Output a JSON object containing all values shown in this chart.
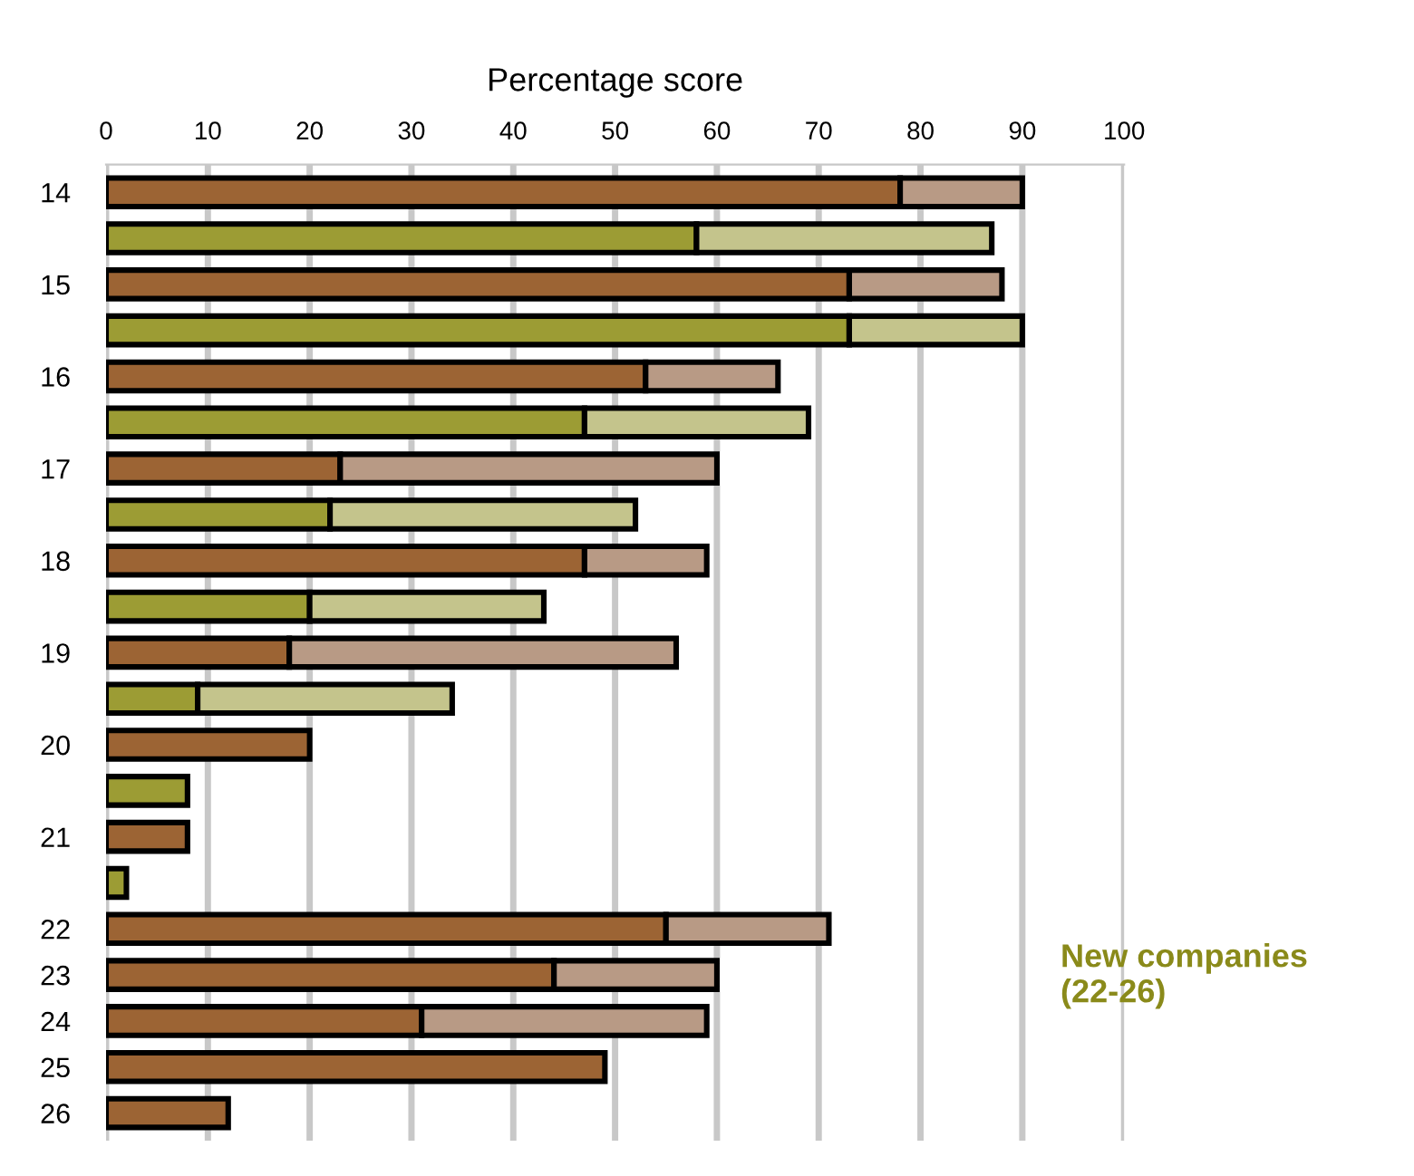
{
  "chart_data": {
    "type": "bar",
    "orientation": "horizontal",
    "stacked": true,
    "xlabel": "Percentage score",
    "categories": [
      "14",
      null,
      "15",
      null,
      "16",
      null,
      "17",
      null,
      "18",
      null,
      "19",
      null,
      "20",
      null,
      "21",
      null,
      "22",
      "23",
      "24",
      "25",
      "26"
    ],
    "series": [
      {
        "colors": [
          "#9c6434",
          "#9c9c34",
          "#9c6434",
          "#9c9c34",
          "#9c6434",
          "#9c9c34",
          "#9c6434",
          "#9c9c34",
          "#9c6434",
          "#9c9c34",
          "#9c6434",
          "#9c9c34",
          "#9c6434",
          "#9c9c34",
          "#9c6434",
          "#9c9c34",
          "#9c6434",
          "#9c6434",
          "#9c6434",
          "#9c6434",
          "#9c6434"
        ],
        "values": [
          78,
          58,
          73,
          73,
          53,
          47,
          23,
          22,
          47,
          20,
          18,
          9,
          20,
          8,
          8,
          2,
          55,
          44,
          31,
          49,
          12
        ]
      },
      {
        "colors": [
          "#b89a85",
          "#c4c48c",
          "#b89a85",
          "#c4c48c",
          "#b89a85",
          "#c4c48c",
          "#b89a85",
          "#c4c48c",
          "#b89a85",
          "#c4c48c",
          "#b89a85",
          "#c4c48c",
          "#b89a85",
          "#c4c48c",
          "#b89a85",
          "#c4c48c",
          "#b89a85",
          "#b89a85",
          "#b89a85",
          "#b89a85",
          "#b89a85"
        ],
        "values": [
          12,
          29,
          15,
          17,
          13,
          22,
          37,
          30,
          12,
          23,
          38,
          25,
          null,
          null,
          null,
          null,
          16,
          16,
          28,
          null,
          null
        ]
      }
    ],
    "xlim": [
      0,
      100
    ],
    "xticks": [
      0,
      10,
      20,
      30,
      40,
      50,
      60,
      70,
      80,
      90,
      100
    ],
    "grid": "x",
    "annotations": [
      "New companies\n(22-26)"
    ]
  }
}
